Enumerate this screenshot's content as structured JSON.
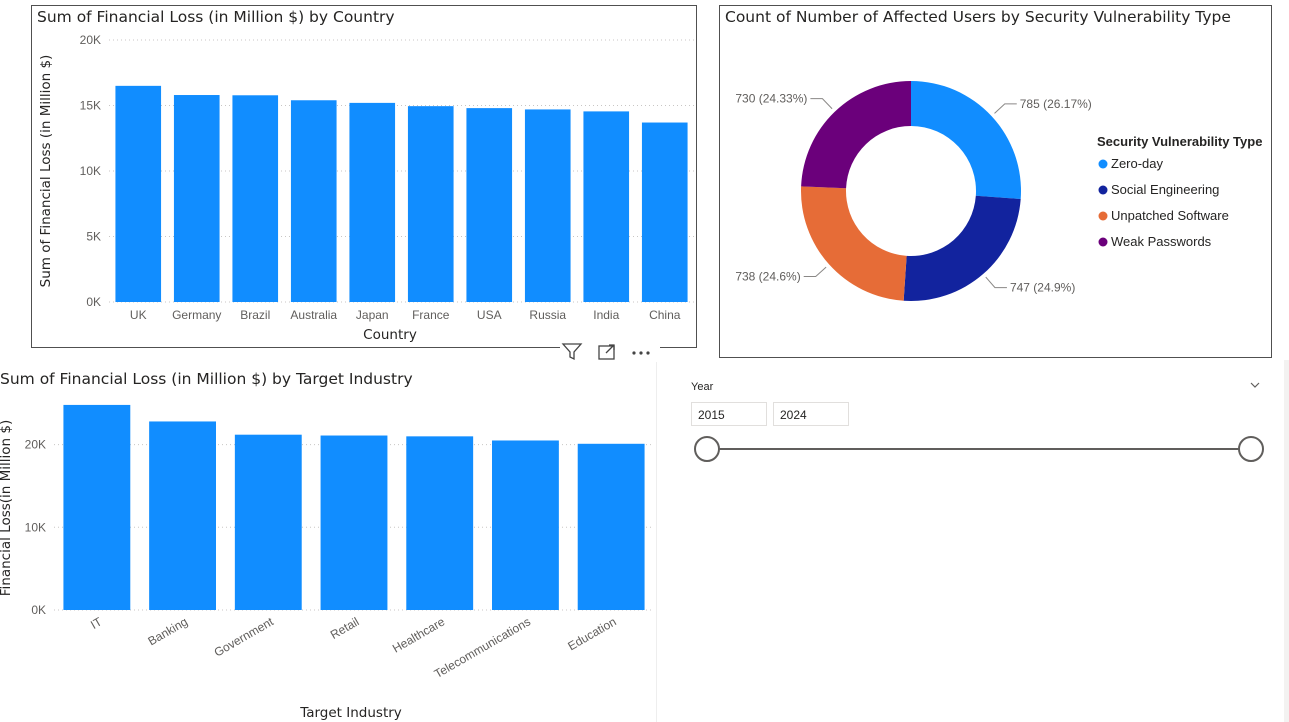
{
  "chart_data": [
    {
      "type": "bar",
      "title": "Sum of Financial Loss (in Million $) by Country",
      "xlabel": "Country",
      "ylabel": "Sum of Financial Loss (in Million $)",
      "categories": [
        "UK",
        "Germany",
        "Brazil",
        "Australia",
        "Japan",
        "France",
        "USA",
        "Russia",
        "India",
        "China"
      ],
      "values": [
        16500,
        15800,
        15780,
        15400,
        15200,
        14950,
        14800,
        14700,
        14550,
        13700
      ],
      "ylim": [
        0,
        20000
      ],
      "yticks": [
        "0K",
        "5K",
        "10K",
        "15K",
        "20K"
      ],
      "ytick_values": [
        0,
        5000,
        10000,
        15000,
        20000
      ],
      "grid": true,
      "color": "#118dff"
    },
    {
      "type": "pie",
      "title": "Count of Number of Affected Users by Security Vulnerability Type",
      "legend_title": "Security Vulnerability Type",
      "legend_position": "right",
      "slices": [
        {
          "name": "Zero-day",
          "value": 785,
          "label": "785 (26.17%)",
          "color": "#118dff"
        },
        {
          "name": "Social Engineering",
          "value": 747,
          "label": "747 (24.9%)",
          "color": "#12239e"
        },
        {
          "name": "Unpatched Software",
          "value": 738,
          "label": "738 (24.6%)",
          "color": "#e66c37"
        },
        {
          "name": "Weak Passwords",
          "value": 730,
          "label": "730 (24.33%)",
          "color": "#6b007b"
        }
      ]
    },
    {
      "type": "bar",
      "title": "Sum of Financial Loss (in Million $) by Target Industry",
      "xlabel": "Target Industry",
      "ylabel": "Financial Loss(in Million $)",
      "categories": [
        "IT",
        "Banking",
        "Government",
        "Retail",
        "Healthcare",
        "Telecommunications",
        "Education"
      ],
      "values": [
        24800,
        22800,
        21200,
        21100,
        21000,
        20500,
        20100
      ],
      "ylim": [
        0,
        26000
      ],
      "yticks": [
        "0K",
        "10K",
        "20K"
      ],
      "ytick_values": [
        0,
        10000,
        20000
      ],
      "grid": true,
      "color": "#118dff"
    }
  ],
  "slicer": {
    "label": "Year",
    "start": "2015",
    "end": "2024"
  },
  "icons": {
    "filter": "filter-icon",
    "focus": "focus-mode-icon",
    "more": "more-options-icon",
    "chevron": "chevron-down-icon"
  }
}
